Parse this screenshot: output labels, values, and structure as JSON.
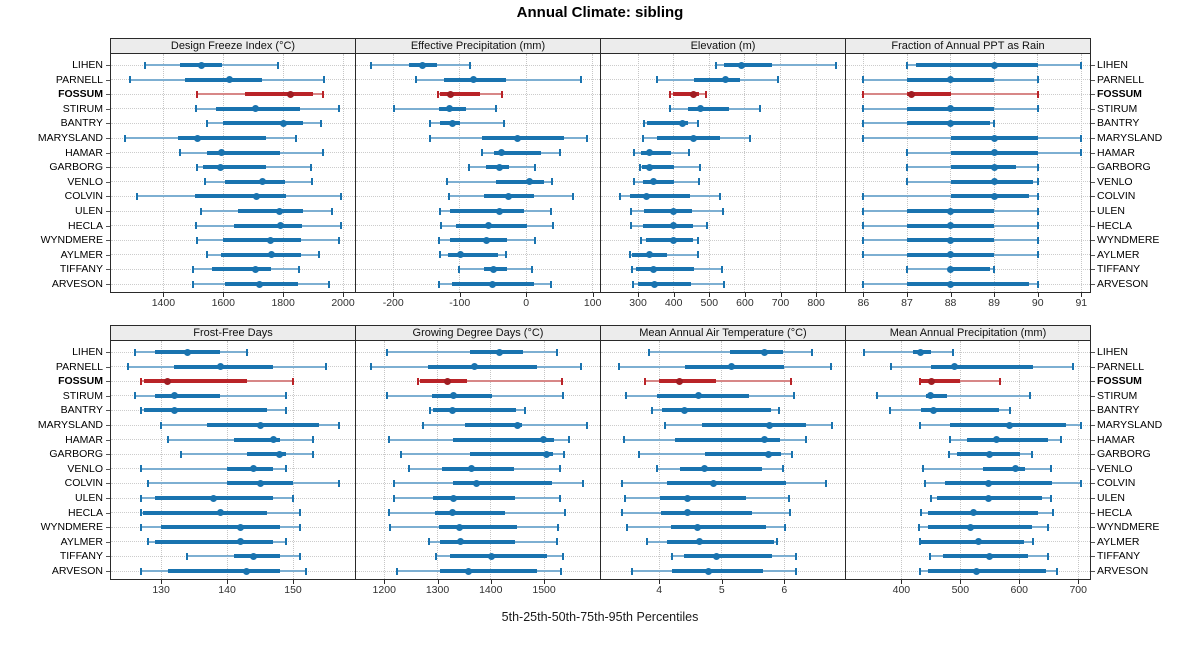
{
  "title": "Annual Climate: sibling",
  "caption": "5th-25th-50th-75th-95th Percentiles",
  "stations": [
    "LIHEN",
    "PARNELL",
    "FOSSUM",
    "STIRUM",
    "BANTRY",
    "MARYSLAND",
    "HAMAR",
    "GARBORG",
    "VENLO",
    "COLVIN",
    "ULEN",
    "HECLA",
    "WYNDMERE",
    "AYLMER",
    "TIFFANY",
    "ARVESON"
  ],
  "highlight_station": "FOSSUM",
  "colors": {
    "series": "#1973af",
    "series_light": "#7dafd2",
    "series_dot": "#1973af",
    "highlight": "#b92328",
    "highlight_light": "#d78787",
    "highlight_dot": "#a01d22",
    "strip_bg": "#ececec",
    "border": "#2a2a2a",
    "grid": "#c6c6c6"
  },
  "chart_data": [
    {
      "type": "dot-whisker-percentiles",
      "strip_label": "Design Freeze Index (°C)",
      "row": 0,
      "col": 0,
      "percentile_labels": [
        "5th",
        "25th",
        "50th",
        "75th",
        "95th"
      ],
      "ticks": [
        1400,
        1600,
        1800,
        2000
      ],
      "domain": [
        1225,
        2040
      ],
      "values": [
        [
          1337,
          1455,
          1528,
          1597,
          1783
        ],
        [
          1289,
          1472,
          1620,
          1730,
          1937
        ],
        [
          1513,
          1672,
          1826,
          1900,
          1933
        ],
        [
          1509,
          1576,
          1706,
          1856,
          1985
        ],
        [
          1545,
          1600,
          1800,
          1865,
          1925
        ],
        [
          1272,
          1450,
          1513,
          1744,
          1844
        ],
        [
          1456,
          1544,
          1594,
          1789,
          1933
        ],
        [
          1513,
          1533,
          1591,
          1742,
          1894
        ],
        [
          1539,
          1606,
          1731,
          1806,
          1898
        ],
        [
          1311,
          1506,
          1711,
          1811,
          1994
        ],
        [
          1524,
          1650,
          1787,
          1867,
          1964
        ],
        [
          1509,
          1636,
          1791,
          1864,
          1994
        ],
        [
          1513,
          1598,
          1758,
          1861,
          1987
        ],
        [
          1547,
          1594,
          1761,
          1861,
          1920
        ],
        [
          1498,
          1564,
          1709,
          1758,
          1853
        ],
        [
          1500,
          1606,
          1720,
          1850,
          1953
        ]
      ]
    },
    {
      "type": "dot-whisker-percentiles",
      "strip_label": "Effective Precipitation (mm)",
      "row": 0,
      "col": 1,
      "percentile_labels": [
        "5th",
        "25th",
        "50th",
        "75th",
        "95th"
      ],
      "ticks": [
        -200,
        -100,
        0,
        100
      ],
      "domain": [
        -256,
        111
      ],
      "values": [
        [
          -233,
          -177,
          -156,
          -134,
          -85
        ],
        [
          -166,
          -123,
          -80,
          -31,
          82
        ],
        [
          -133,
          -130,
          -114,
          -69,
          -37
        ],
        [
          -199,
          -131,
          -116,
          -90,
          -45
        ],
        [
          -144,
          -130,
          -111,
          -99,
          -34
        ],
        [
          -145,
          -66,
          -13,
          57,
          92
        ],
        [
          -67,
          -49,
          -37,
          22,
          51
        ],
        [
          -86,
          -60,
          -40,
          -26,
          13
        ],
        [
          -119,
          -45,
          5,
          27,
          39
        ],
        [
          -116,
          -64,
          -26,
          12,
          71
        ],
        [
          -130,
          -114,
          -40,
          -4,
          38
        ],
        [
          -128,
          -106,
          -56,
          1,
          41
        ],
        [
          -131,
          -114,
          -60,
          -29,
          13
        ],
        [
          -129,
          -117,
          -99,
          -42,
          -31
        ],
        [
          -101,
          -64,
          -49,
          -29,
          9
        ],
        [
          -131,
          -111,
          -51,
          12,
          37
        ]
      ]
    },
    {
      "type": "dot-whisker-percentiles",
      "strip_label": "Elevation (m)",
      "row": 0,
      "col": 2,
      "percentile_labels": [
        "5th",
        "25th",
        "50th",
        "75th",
        "95th"
      ],
      "ticks": [
        300,
        400,
        500,
        600,
        700,
        800
      ],
      "domain": [
        196,
        881
      ],
      "values": [
        [
          520,
          540,
          590,
          675,
          855
        ],
        [
          352,
          458,
          545,
          585,
          694
        ],
        [
          389,
          399,
          455,
          472,
          492
        ],
        [
          389,
          439,
          474,
          556,
          641
        ],
        [
          317,
          325,
          425,
          440,
          469
        ],
        [
          314,
          353,
          456,
          531,
          615
        ],
        [
          288,
          307,
          333,
          393,
          444
        ],
        [
          305,
          311,
          333,
          400,
          473
        ],
        [
          288,
          314,
          342,
          400,
          470
        ],
        [
          248,
          277,
          325,
          445,
          529
        ],
        [
          281,
          316,
          399,
          451,
          538
        ],
        [
          281,
          314,
          400,
          453,
          493
        ],
        [
          309,
          322,
          399,
          453,
          467
        ],
        [
          278,
          284,
          331,
          381,
          467
        ],
        [
          284,
          293,
          343,
          456,
          536
        ],
        [
          287,
          300,
          345,
          450,
          540
        ]
      ]
    },
    {
      "type": "dot-whisker-percentiles",
      "strip_label": "Fraction of Annual PPT as Rain",
      "row": 0,
      "col": 3,
      "percentile_labels": [
        "5th",
        "25th",
        "50th",
        "75th",
        "95th"
      ],
      "ticks": [
        86,
        87,
        88,
        89,
        90,
        91
      ],
      "domain": [
        85.6,
        91.2
      ],
      "values": [
        [
          87,
          87.2,
          89,
          90,
          91
        ],
        [
          86,
          87,
          88,
          89,
          90
        ],
        [
          86,
          87,
          87.1,
          88,
          90
        ],
        [
          86,
          87,
          88,
          89,
          90
        ],
        [
          86,
          87,
          88,
          88.9,
          89
        ],
        [
          86,
          88,
          89,
          90,
          91
        ],
        [
          87,
          88,
          89,
          90,
          91
        ],
        [
          87,
          88,
          89,
          89.5,
          90
        ],
        [
          87,
          88,
          89,
          89.9,
          90
        ],
        [
          86,
          88,
          89,
          89.8,
          90
        ],
        [
          86,
          87,
          88,
          89,
          90
        ],
        [
          86,
          87,
          88,
          89,
          90
        ],
        [
          86,
          87,
          88,
          89,
          90
        ],
        [
          86,
          87,
          88,
          89,
          90
        ],
        [
          87,
          88,
          88,
          88.9,
          89
        ],
        [
          86,
          87,
          88,
          89.8,
          90
        ]
      ]
    },
    {
      "type": "dot-whisker-percentiles",
      "strip_label": "Frost-Free Days",
      "row": 1,
      "col": 0,
      "percentile_labels": [
        "5th",
        "25th",
        "50th",
        "75th",
        "95th"
      ],
      "ticks": [
        130,
        140,
        150
      ],
      "domain": [
        122.4,
        159.4
      ],
      "values": [
        [
          126,
          129,
          134,
          139,
          143
        ],
        [
          125,
          132,
          139,
          147,
          155
        ],
        [
          127,
          127.4,
          131,
          143,
          150
        ],
        [
          126,
          129,
          132,
          139,
          149
        ],
        [
          127,
          127.4,
          132,
          146,
          149
        ],
        [
          130,
          137,
          145,
          154,
          157
        ],
        [
          131,
          141,
          147,
          148,
          153
        ],
        [
          133,
          143,
          148,
          149,
          153
        ],
        [
          127,
          140,
          144,
          147,
          149
        ],
        [
          128,
          140,
          145,
          150,
          157
        ],
        [
          127,
          129,
          138,
          147,
          150
        ],
        [
          127,
          127.3,
          139,
          146,
          151
        ],
        [
          127,
          130,
          142,
          148,
          151
        ],
        [
          128,
          129,
          142,
          147,
          149
        ],
        [
          134,
          141,
          144,
          148,
          151
        ],
        [
          127,
          131,
          143,
          148,
          152
        ]
      ]
    },
    {
      "type": "dot-whisker-percentiles",
      "strip_label": "Growing Degree Days (°C)",
      "row": 1,
      "col": 1,
      "percentile_labels": [
        "5th",
        "25th",
        "50th",
        "75th",
        "95th"
      ],
      "ticks": [
        1200,
        1300,
        1400,
        1500
      ],
      "domain": [
        1147,
        1605
      ],
      "values": [
        [
          1205,
          1361,
          1417,
          1461,
          1524
        ],
        [
          1176,
          1283,
          1370,
          1486,
          1569
        ],
        [
          1264,
          1268,
          1319,
          1356,
          1534
        ],
        [
          1206,
          1289,
          1330,
          1403,
          1536
        ],
        [
          1286,
          1291,
          1328,
          1447,
          1464
        ],
        [
          1272,
          1351,
          1451,
          1458,
          1581
        ],
        [
          1209,
          1330,
          1499,
          1518,
          1547
        ],
        [
          1231,
          1361,
          1505,
          1517,
          1537
        ],
        [
          1247,
          1308,
          1364,
          1443,
          1530
        ],
        [
          1218,
          1330,
          1374,
          1514,
          1574
        ],
        [
          1218,
          1291,
          1330,
          1445,
          1530
        ],
        [
          1209,
          1295,
          1328,
          1426,
          1539
        ],
        [
          1211,
          1303,
          1341,
          1449,
          1526
        ],
        [
          1284,
          1305,
          1343,
          1445,
          1524
        ],
        [
          1297,
          1324,
          1401,
          1505,
          1536
        ],
        [
          1224,
          1305,
          1358,
          1486,
          1532
        ]
      ]
    },
    {
      "type": "dot-whisker-percentiles",
      "strip_label": "Mean Annual Air Temperature (°C)",
      "row": 1,
      "col": 2,
      "percentile_labels": [
        "5th",
        "25th",
        "50th",
        "75th",
        "95th"
      ],
      "ticks": [
        4,
        5,
        6
      ],
      "domain": [
        3.07,
        6.97
      ],
      "values": [
        [
          3.84,
          5.13,
          5.69,
          5.98,
          6.45
        ],
        [
          3.35,
          4.41,
          5.15,
          6.0,
          6.74
        ],
        [
          3.77,
          4.0,
          4.33,
          4.91,
          6.11
        ],
        [
          3.47,
          3.97,
          4.63,
          5.44,
          6.15
        ],
        [
          3.88,
          4.05,
          4.4,
          5.78,
          5.91
        ],
        [
          4.1,
          4.68,
          5.76,
          6.34,
          6.77
        ],
        [
          3.43,
          4.26,
          5.68,
          5.93,
          6.35
        ],
        [
          3.67,
          4.73,
          5.74,
          5.94,
          6.13
        ],
        [
          3.96,
          4.33,
          4.72,
          5.65,
          5.98
        ],
        [
          3.41,
          4.13,
          4.87,
          6.02,
          6.66
        ],
        [
          3.46,
          4.01,
          4.45,
          5.38,
          6.07
        ],
        [
          3.41,
          4.03,
          4.45,
          5.48,
          6.09
        ],
        [
          3.49,
          4.19,
          4.61,
          5.7,
          6.01
        ],
        [
          3.81,
          4.13,
          4.64,
          5.84,
          5.89
        ],
        [
          4.2,
          4.4,
          4.91,
          5.81,
          6.18
        ],
        [
          3.56,
          4.2,
          4.79,
          5.66,
          6.18
        ]
      ]
    },
    {
      "type": "dot-whisker-percentiles",
      "strip_label": "Mean Annual Precipitation (mm)",
      "row": 1,
      "col": 3,
      "percentile_labels": [
        "5th",
        "25th",
        "50th",
        "75th",
        "95th"
      ],
      "ticks": [
        400,
        500,
        600,
        700
      ],
      "domain": [
        306,
        720
      ],
      "values": [
        [
          337,
          419,
          433,
          451,
          487
        ],
        [
          382,
          451,
          490,
          623,
          691
        ],
        [
          432,
          434,
          451,
          500,
          568
        ],
        [
          358,
          441,
          449,
          478,
          619
        ],
        [
          380,
          433,
          455,
          565,
          585
        ],
        [
          432,
          483,
          583,
          679,
          705
        ],
        [
          483,
          512,
          562,
          648,
          670
        ],
        [
          481,
          495,
          550,
          602,
          621
        ],
        [
          437,
          538,
          593,
          610,
          653
        ],
        [
          440,
          474,
          547,
          655,
          705
        ],
        [
          451,
          460,
          547,
          638,
          654
        ],
        [
          434,
          445,
          522,
          632,
          657
        ],
        [
          430,
          445,
          517,
          621,
          649
        ],
        [
          432,
          434,
          530,
          608,
          624
        ],
        [
          449,
          470,
          549,
          615,
          649
        ],
        [
          432,
          445,
          528,
          645,
          664
        ]
      ]
    }
  ]
}
